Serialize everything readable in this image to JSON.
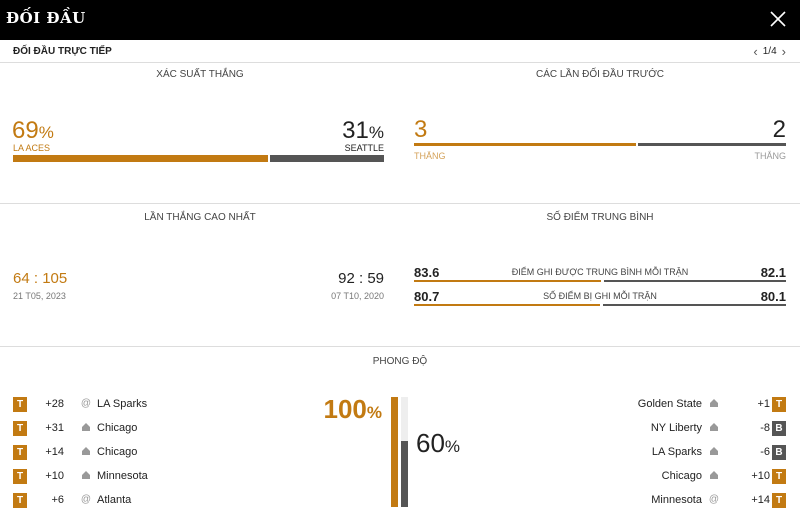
{
  "header": {
    "title": "ĐỐI ĐẦU",
    "close_icon": "close-icon"
  },
  "subbar": {
    "label": "ĐỐI ĐẦU TRỰC TIẾP",
    "page": "1/4"
  },
  "win_prob": {
    "title": "XÁC SUẤT THẮNG",
    "home_value": "69",
    "home_pct": "%",
    "home_team": "LA ACES",
    "away_value": "31",
    "away_pct": "%",
    "away_team": "SEATTLE",
    "home_fraction": 0.69
  },
  "previous": {
    "title": "CÁC LẦN ĐỐI ĐẦU TRƯỚC",
    "home_wins": "3",
    "home_label": "THẮNG",
    "away_wins": "2",
    "away_label": "THẮNG",
    "home_fraction": 0.6
  },
  "biggest_win": {
    "title": "LẦN THẮNG CAO NHẤT",
    "home_score_a": "64",
    "home_score_b": "105",
    "home_sep": ":",
    "home_date": "21 T05, 2023",
    "away_score_a": "92",
    "away_score_b": "59",
    "away_sep": ":",
    "away_date": "07 T10, 2020"
  },
  "avg_points": {
    "title": "SỐ ĐIỂM TRUNG BÌNH",
    "rows": [
      {
        "label": "ĐIỂM GHI ĐƯỢC TRUNG BÌNH MỖI TRẬN",
        "home": "83.6",
        "away": "82.1",
        "home_fraction": 0.505
      },
      {
        "label": "SỐ ĐIỂM BỊ GHI MỖI TRẬN",
        "home": "80.7",
        "away": "80.1",
        "home_fraction": 0.502
      }
    ]
  },
  "form": {
    "title": "PHONG ĐỘ",
    "home_pct": "100",
    "away_pct": "60",
    "pct_sign": "%",
    "home_fraction": 1.0,
    "away_fraction": 0.6,
    "home": [
      {
        "result": "T",
        "diff": "+28",
        "venue": "@",
        "team": "LA Sparks"
      },
      {
        "result": "T",
        "diff": "+31",
        "venue": "home-icon",
        "team": "Chicago"
      },
      {
        "result": "T",
        "diff": "+14",
        "venue": "home-icon",
        "team": "Chicago"
      },
      {
        "result": "T",
        "diff": "+10",
        "venue": "home-icon",
        "team": "Minnesota"
      },
      {
        "result": "T",
        "diff": "+6",
        "venue": "@",
        "team": "Atlanta"
      }
    ],
    "away": [
      {
        "result": "T",
        "diff": "+1",
        "venue": "home-icon",
        "team": "Golden State"
      },
      {
        "result": "B",
        "diff": "-8",
        "venue": "home-icon",
        "team": "NY Liberty"
      },
      {
        "result": "B",
        "diff": "-6",
        "venue": "home-icon",
        "team": "LA Sparks"
      },
      {
        "result": "T",
        "diff": "+10",
        "venue": "home-icon",
        "team": "Chicago"
      },
      {
        "result": "T",
        "diff": "+14",
        "venue": "@",
        "team": "Minnesota"
      }
    ]
  },
  "colors": {
    "accent": "#c27a12",
    "dark": "#555555",
    "header_bg": "#000000"
  }
}
